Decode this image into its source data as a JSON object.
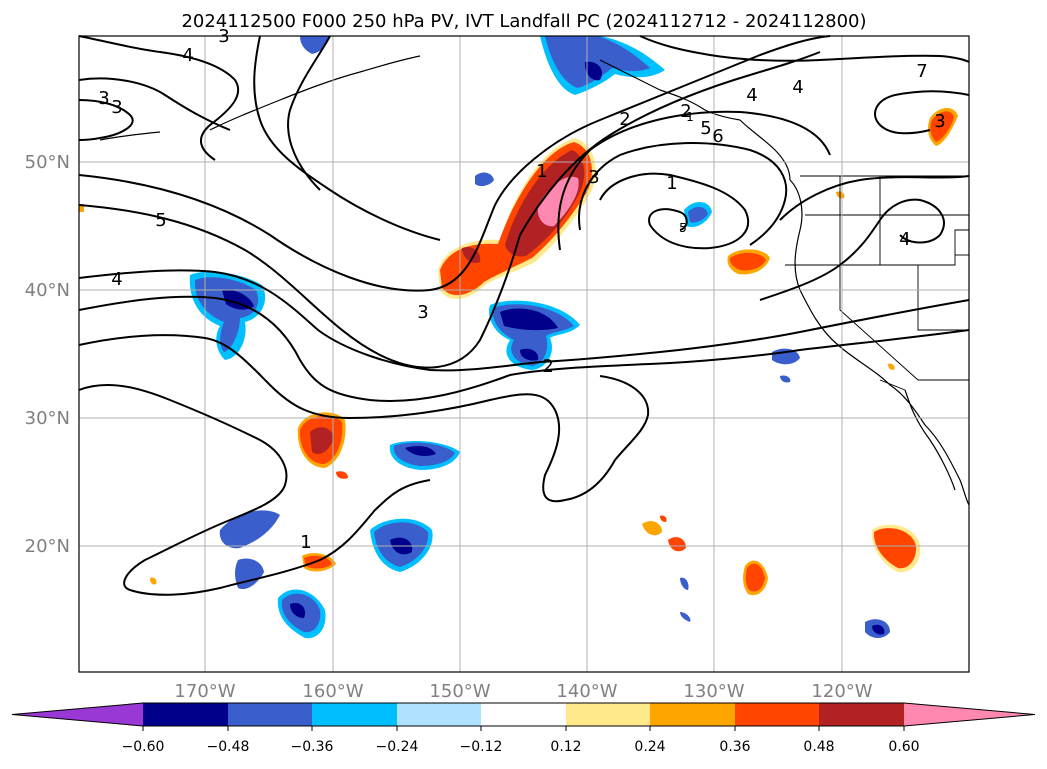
{
  "title": "2024112500 F000 250 hPa PV, IVT Landfall PC (2024112712 - 2024112800)",
  "map": {
    "lon_labels": [
      "170°W",
      "160°W",
      "150°W",
      "140°W",
      "130°W",
      "120°W"
    ],
    "lat_labels": [
      "50°N",
      "40°N",
      "30°N",
      "20°N"
    ],
    "axis_label_color": "#808080",
    "grid_color": "#b0b0b0",
    "contour_labels": [
      "3",
      "4",
      "3",
      "5",
      "4",
      "3",
      "2",
      "1",
      "2",
      "4",
      "7",
      "6",
      "5",
      "3",
      "1",
      "1",
      "2",
      "3",
      "4",
      "5",
      "4",
      "1",
      "3"
    ]
  },
  "colorbar": {
    "tick_labels": [
      "−0.60",
      "−0.48",
      "−0.36",
      "−0.24",
      "−0.12",
      "0.12",
      "0.24",
      "0.36",
      "0.48",
      "0.60"
    ],
    "colors": [
      "#9a38d6",
      "#00008b",
      "#3a5fcd",
      "#00bfff",
      "#b0e2ff",
      "#ffffff",
      "#ffe98a",
      "#ffa500",
      "#ff4500",
      "#b22222",
      "#ff88b0"
    ]
  },
  "colors": {
    "neg_strong": "#00008b",
    "neg_mid": "#3a5fcd",
    "neg_light": "#00bfff",
    "pos_light": "#ffe98a",
    "pos_mid": "#ffa500",
    "pos_strong": "#ff4500",
    "pos_dark": "#b22222",
    "pos_max": "#ff88b0"
  }
}
